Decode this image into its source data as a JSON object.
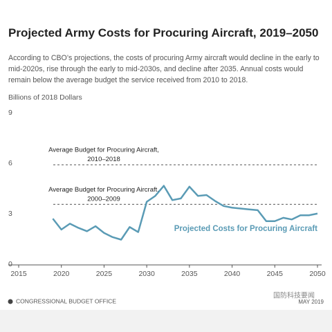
{
  "chart_data": {
    "type": "line",
    "title": "Projected Army Costs for Procuring Aircraft, 2019–2050",
    "subtitle": "According to CBO’s projections, the costs of procuring Army aircraft would decline in the early to mid-2020s, rise through the early to mid-2030s, and decline after 2035. Annual costs would remain below the average budget the service received from 2010 to 2018.",
    "y_label": "Billions of 2018 Dollars",
    "x": [
      2019,
      2020,
      2021,
      2022,
      2023,
      2024,
      2025,
      2026,
      2027,
      2028,
      2029,
      2030,
      2031,
      2032,
      2033,
      2034,
      2035,
      2036,
      2037,
      2038,
      2039,
      2040,
      2041,
      2042,
      2043,
      2044,
      2045,
      2046,
      2047,
      2048,
      2049,
      2050
    ],
    "series": [
      {
        "name": "Projected Costs for Procuring Aircraft",
        "color": "#5a9bb5",
        "values": [
          2.75,
          2.1,
          2.45,
          2.2,
          2.0,
          2.3,
          1.9,
          1.65,
          1.5,
          2.25,
          1.95,
          3.75,
          4.1,
          4.7,
          3.85,
          3.95,
          4.65,
          4.1,
          4.15,
          3.8,
          3.5,
          3.4,
          3.35,
          3.3,
          3.25,
          2.6,
          2.6,
          2.8,
          2.7,
          2.95,
          2.95,
          3.05
        ]
      }
    ],
    "reference_lines": [
      {
        "value": 5.95,
        "label": [
          "Average Budget for Procuring Aircraft,",
          "2010–2018"
        ]
      },
      {
        "value": 3.6,
        "label": [
          "Average Budget for Procuring Aircraft,",
          "2000–2009"
        ]
      }
    ],
    "xlim": [
      2015,
      2050
    ],
    "xticks": [
      2015,
      2020,
      2025,
      2030,
      2035,
      2040,
      2045,
      2050
    ],
    "ylim": [
      0,
      9
    ],
    "yticks": [
      0,
      3,
      6,
      9
    ],
    "source": "CONGRESSIONAL BUDGET OFFICE",
    "date": "MAY 2019",
    "watermark": "国防科技要闻"
  }
}
